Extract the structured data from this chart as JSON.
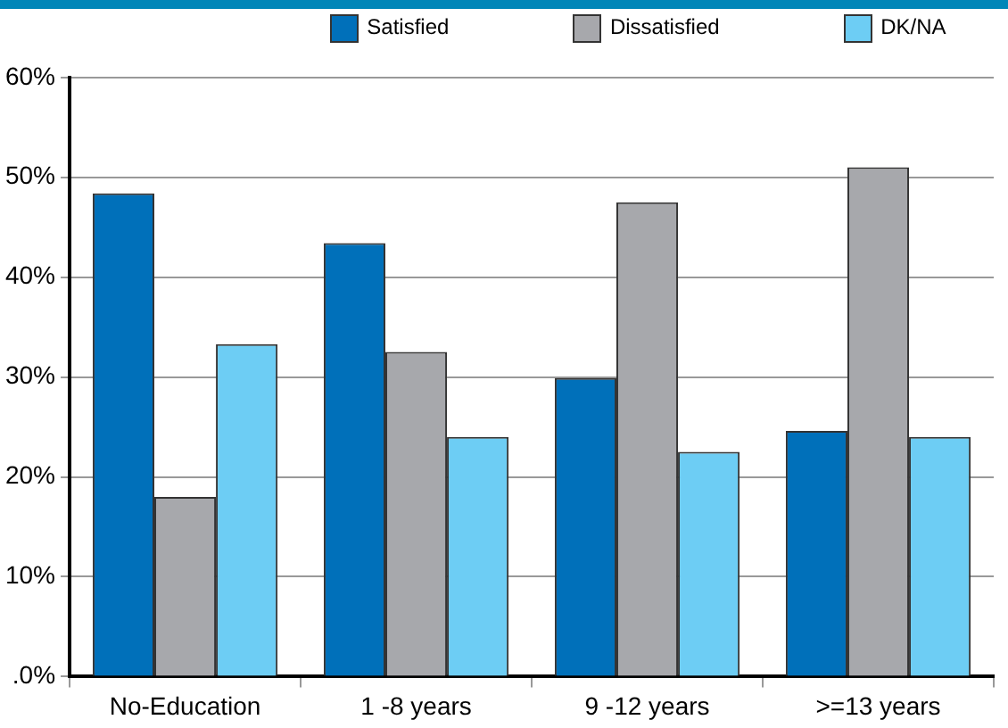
{
  "chart_data": {
    "type": "bar",
    "categories": [
      "No-Education",
      "1 -8 years",
      "9 -12 years",
      ">=13 years"
    ],
    "series": [
      {
        "name": "Satisfied",
        "color": "#0070ba",
        "values": [
          48.4,
          43.4,
          29.9,
          24.6
        ]
      },
      {
        "name": "Dissatisfied",
        "color": "#a7a8ac",
        "values": [
          18.0,
          32.5,
          47.5,
          51.0
        ]
      },
      {
        "name": "DK/NA",
        "color": "#6dcdf4",
        "values": [
          33.3,
          24.0,
          22.5,
          24.0
        ]
      }
    ],
    "ylim": [
      0,
      60
    ],
    "yticks": [
      {
        "value": 0,
        "label": ".0%"
      },
      {
        "value": 10,
        "label": "10%"
      },
      {
        "value": 20,
        "label": "20%"
      },
      {
        "value": 30,
        "label": "30%"
      },
      {
        "value": 40,
        "label": "40%"
      },
      {
        "value": 50,
        "label": "50%"
      },
      {
        "value": 60,
        "label": "60%"
      }
    ],
    "grid": "y",
    "legend": "top right"
  }
}
